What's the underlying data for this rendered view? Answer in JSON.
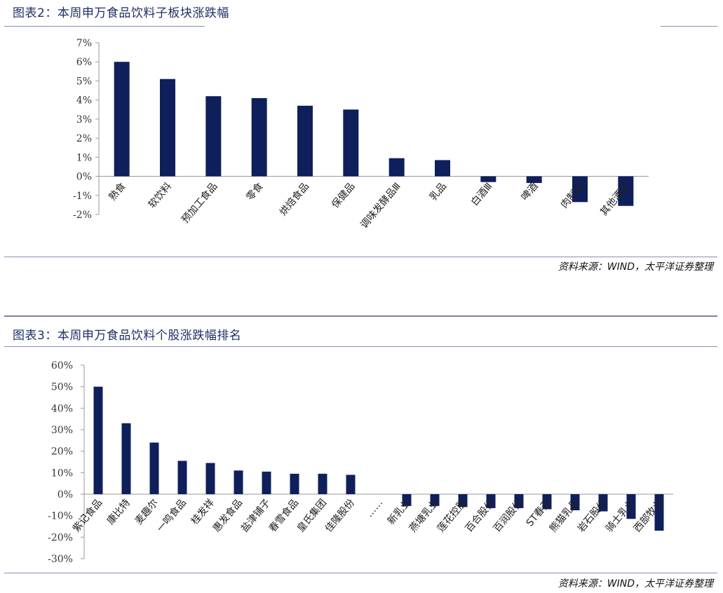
{
  "chart_data": [
    {
      "type": "bar",
      "title": "图表2：本周申万食品饮料子板块涨跌幅",
      "source": "资料来源：WIND，太平洋证券整理",
      "color": "#0f1f5c",
      "unit": "%",
      "ylim": [
        -2,
        7
      ],
      "yticks": [
        -2,
        -1,
        0,
        1,
        2,
        3,
        4,
        5,
        6,
        7
      ],
      "ytick_labels": [
        "-2%",
        "-1%",
        "0%",
        "1%",
        "2%",
        "3%",
        "4%",
        "5%",
        "6%",
        "7%"
      ],
      "categories": [
        "熟食",
        "软饮料",
        "预加工食品",
        "零食",
        "烘焙食品",
        "保健品",
        "调味发酵品Ⅲ",
        "乳品",
        "白酒Ⅲ",
        "啤酒",
        "肉制品",
        "其他酒类"
      ],
      "values": [
        6.0,
        5.1,
        4.2,
        4.1,
        3.7,
        3.5,
        0.95,
        0.85,
        -0.3,
        -0.35,
        -1.35,
        -1.55
      ]
    },
    {
      "type": "bar",
      "title": "图表3：本周申万食品饮料个股涨跌幅排名",
      "source": "资料来源：WIND，太平洋证券整理",
      "color": "#0f1f5c",
      "unit": "%",
      "ylim": [
        -30,
        60
      ],
      "yticks": [
        -30,
        -20,
        -10,
        0,
        10,
        20,
        30,
        40,
        50,
        60
      ],
      "ytick_labels": [
        "-30%",
        "-20%",
        "-10%",
        "0%",
        "10%",
        "20%",
        "30%",
        "40%",
        "50%",
        "60%"
      ],
      "categories": [
        "紫记食品",
        "康比特",
        "麦趣尔",
        "一鸣食品",
        "桂发祥",
        "惠发食品",
        "盐津铺子",
        "春雪食品",
        "皇氏集团",
        "佳隆股份",
        "……",
        "新乳业",
        "燕塘乳业",
        "莲花控股",
        "百合股份",
        "百润股份",
        "ST春天",
        "熊猫乳品",
        "岩石股份",
        "骑士乳业",
        "西部牧业"
      ],
      "values": [
        50,
        33,
        24,
        15.5,
        14.5,
        11,
        10.5,
        9.5,
        9.5,
        9,
        null,
        -5.5,
        -5.5,
        -6,
        -6.5,
        -6.5,
        -7,
        -7.5,
        -8,
        -11.5,
        -17
      ]
    }
  ]
}
